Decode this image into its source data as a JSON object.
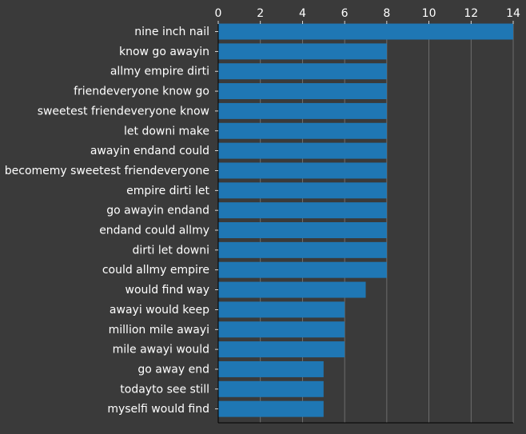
{
  "chart_data": {
    "type": "bar",
    "orientation": "horizontal",
    "categories": [
      "nine inch nail",
      "know go awayin",
      "allmy empire dirti",
      "friendeveryone know go",
      "sweetest friendeveryone know",
      "let downi make",
      "awayin endand could",
      "becomemy sweetest friendeveryone",
      "empire dirti let",
      "go awayin endand",
      "endand could allmy",
      "dirti let downi",
      "could allmy empire",
      "would find way",
      "awayi would keep",
      "million mile awayi",
      "mile awayi would",
      "go away end",
      "todayto see still",
      "myselfi would find"
    ],
    "values": [
      14,
      8,
      8,
      8,
      8,
      8,
      8,
      8,
      8,
      8,
      8,
      8,
      8,
      7,
      6,
      6,
      6,
      5,
      5,
      5
    ],
    "x_ticks": [
      0,
      2,
      4,
      6,
      8,
      10,
      12,
      14
    ],
    "xlim": [
      0,
      14
    ],
    "x_axis_position": "top",
    "grid": true,
    "title": "",
    "xlabel": "",
    "ylabel": "",
    "colors": {
      "background": "#3a3a3a",
      "bar": "#1f77b4",
      "text": "#ffffff",
      "grid": "#7a7a7a",
      "axis": "#000000"
    }
  }
}
